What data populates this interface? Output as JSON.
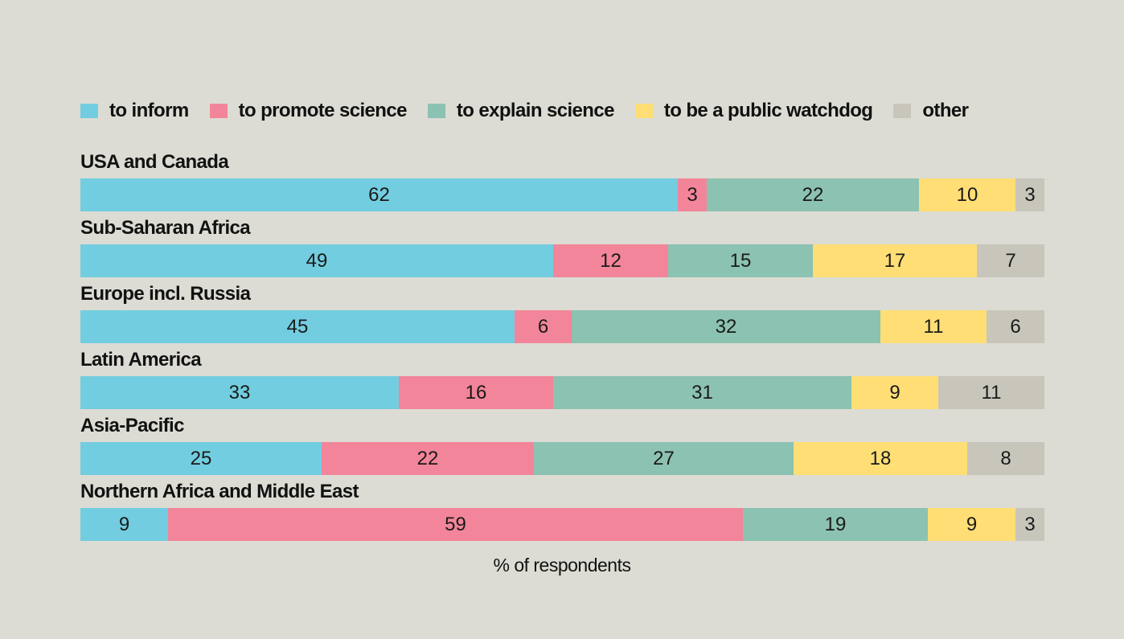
{
  "chart_data": {
    "type": "bar",
    "orientation": "horizontal",
    "stacked": true,
    "title": "",
    "xlabel": "% of respondents",
    "ylabel": "",
    "xlim": [
      0,
      100
    ],
    "legend_position": "top",
    "categories": [
      "USA and Canada",
      "Sub-Saharan Africa",
      "Europe incl. Russia",
      "Latin America",
      "Asia-Pacific",
      "Northern Africa and Middle East"
    ],
    "series": [
      {
        "name": "to inform",
        "color": "#72cde0",
        "values": [
          62,
          49,
          45,
          33,
          25,
          9
        ]
      },
      {
        "name": "to promote science",
        "color": "#f28599",
        "values": [
          3,
          12,
          6,
          16,
          22,
          59
        ]
      },
      {
        "name": "to explain science",
        "color": "#8cc2b1",
        "values": [
          22,
          15,
          32,
          31,
          27,
          19
        ]
      },
      {
        "name": "to be a public watchdog",
        "color": "#ffde75",
        "values": [
          10,
          17,
          11,
          9,
          18,
          9
        ]
      },
      {
        "name": "other",
        "color": "#c8c6ba",
        "values": [
          3,
          7,
          6,
          11,
          8,
          3
        ]
      }
    ]
  }
}
